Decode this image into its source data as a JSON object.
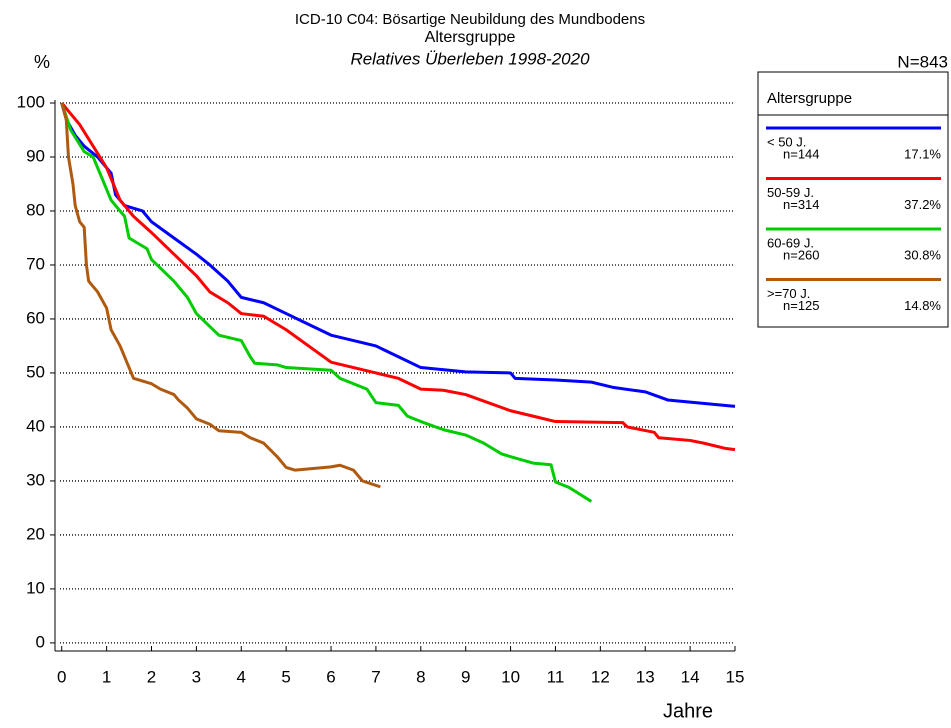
{
  "chart_data": {
    "type": "line",
    "title": "ICD-10 C04: Bösartige Neubildung des Mundbodens",
    "subtitle": "Altersgruppe",
    "subtitle2": "Relatives Überleben 1998-2020",
    "y_label": "%",
    "x_label": "Jahre",
    "total_label": "N=843",
    "legend_title": "Altersgruppe",
    "xlim": [
      -0.15,
      15
    ],
    "ylim": [
      -1.5,
      100
    ],
    "xticks": [
      0,
      1,
      2,
      3,
      4,
      5,
      6,
      7,
      8,
      9,
      10,
      11,
      12,
      13,
      14,
      15
    ],
    "yticks": [
      0,
      10,
      20,
      30,
      40,
      50,
      60,
      70,
      80,
      90,
      100
    ],
    "grid": true,
    "series": [
      {
        "name": "< 50 J.",
        "n_label": "n=144",
        "share": "17.1%",
        "color": "#0000ff",
        "x": [
          0,
          0.1,
          0.3,
          0.5,
          0.8,
          1.1,
          1.2,
          1.4,
          1.8,
          2.0,
          2.5,
          3.0,
          3.3,
          3.7,
          4.0,
          4.5,
          5.0,
          5.5,
          6.0,
          7.0,
          7.5,
          8.0,
          9.0,
          10.0,
          10.1,
          11.0,
          11.8,
          12.3,
          13.0,
          13.5,
          14.0,
          15
        ],
        "values": [
          100,
          97,
          94,
          92,
          90,
          87,
          83,
          81,
          80,
          78,
          75,
          72,
          70,
          67,
          64,
          63,
          61,
          59,
          57,
          55,
          53,
          51,
          50.2,
          50,
          49,
          48.7,
          48.3,
          47.3,
          46.5,
          45,
          44.6,
          43.8
        ]
      },
      {
        "name": "50-59 J.",
        "n_label": "n=314",
        "share": "37.2%",
        "color": "#ff0000",
        "x": [
          0,
          0.2,
          0.4,
          0.7,
          1.0,
          1.3,
          1.6,
          2.0,
          2.5,
          3.0,
          3.3,
          3.7,
          4.0,
          4.5,
          5.0,
          5.5,
          6.0,
          6.5,
          7.0,
          7.5,
          8.0,
          8.5,
          9.0,
          10.0,
          10.5,
          11.0,
          12.5,
          12.6,
          13.2,
          13.3,
          14.0,
          14.3,
          14.8,
          15
        ],
        "values": [
          100,
          98,
          96,
          92,
          88,
          82,
          79,
          76,
          72,
          68,
          65,
          63,
          61,
          60.5,
          58,
          55,
          52,
          51,
          50,
          49,
          47,
          46.8,
          46,
          43,
          42,
          41,
          40.8,
          40,
          39,
          38,
          37.5,
          37,
          36,
          35.8
        ]
      },
      {
        "name": "60-69 J.",
        "n_label": "n=260",
        "share": "30.8%",
        "color": "#00cc00",
        "x": [
          0,
          0.2,
          0.5,
          0.7,
          0.9,
          1.1,
          1.4,
          1.5,
          1.9,
          2.0,
          2.5,
          2.8,
          3.0,
          3.5,
          4.0,
          4.2,
          4.3,
          4.8,
          5.0,
          6.0,
          6.2,
          6.5,
          6.8,
          7.0,
          7.5,
          7.7,
          8.0,
          8.5,
          9.0,
          9.4,
          9.8,
          10.0,
          10.5,
          10.9,
          11.0,
          11.3,
          11.8
        ],
        "values": [
          100,
          95,
          91,
          90,
          86,
          82,
          79,
          75,
          73,
          71,
          67,
          64,
          61,
          57,
          56,
          53,
          51.8,
          51.5,
          51,
          50.5,
          49,
          48,
          47,
          44.5,
          44,
          42,
          41,
          39.5,
          38.5,
          37,
          35,
          34.5,
          33.3,
          33,
          29.8,
          28.8,
          26.2
        ]
      },
      {
        "name": ">=70 J.",
        "n_label": "n=125",
        "share": "14.8%",
        "color": "#b05a10",
        "x": [
          0,
          0.1,
          0.15,
          0.25,
          0.3,
          0.4,
          0.5,
          0.55,
          0.6,
          0.8,
          1.0,
          1.1,
          1.3,
          1.4,
          1.6,
          2.0,
          2.2,
          2.5,
          2.6,
          2.8,
          3.0,
          3.3,
          3.5,
          4.0,
          4.2,
          4.5,
          4.8,
          5.0,
          5.2,
          6.0,
          6.2,
          6.5,
          6.7,
          7.1
        ],
        "values": [
          100,
          97,
          90,
          85,
          81,
          78,
          77,
          70,
          67,
          65,
          62,
          58,
          55,
          53,
          49,
          48,
          47,
          46,
          45,
          43.5,
          41.5,
          40.5,
          39.3,
          39,
          38,
          37,
          34.5,
          32.5,
          32,
          32.6,
          32.9,
          32,
          30,
          28.9
        ]
      }
    ]
  }
}
